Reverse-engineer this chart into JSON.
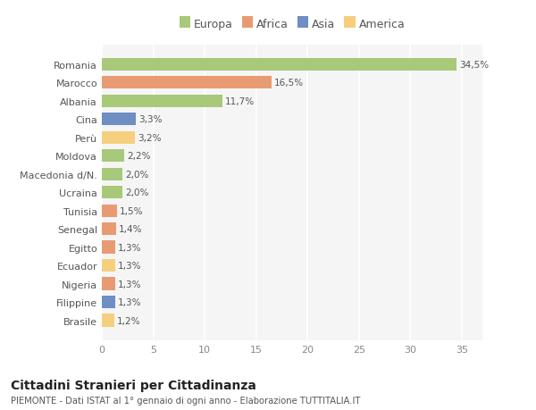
{
  "countries": [
    "Brasile",
    "Filippine",
    "Nigeria",
    "Ecuador",
    "Egitto",
    "Senegal",
    "Tunisia",
    "Ucraina",
    "Macedonia d/N.",
    "Moldova",
    "Perù",
    "Cina",
    "Albania",
    "Marocco",
    "Romania"
  ],
  "values": [
    1.2,
    1.3,
    1.3,
    1.3,
    1.3,
    1.4,
    1.5,
    2.0,
    2.0,
    2.2,
    3.2,
    3.3,
    11.7,
    16.5,
    34.5
  ],
  "labels": [
    "1,2%",
    "1,3%",
    "1,3%",
    "1,3%",
    "1,3%",
    "1,4%",
    "1,5%",
    "2,0%",
    "2,0%",
    "2,2%",
    "3,2%",
    "3,3%",
    "11,7%",
    "16,5%",
    "34,5%"
  ],
  "colors": [
    "#f5cf7e",
    "#6e8ec4",
    "#e89b72",
    "#f5cf7e",
    "#e89b72",
    "#e89b72",
    "#e89b72",
    "#a8c87a",
    "#a8c87a",
    "#a8c87a",
    "#f5cf7e",
    "#6e8ec4",
    "#a8c87a",
    "#e89b72",
    "#a8c87a"
  ],
  "legend": {
    "Europa": "#a8c87a",
    "Africa": "#e89b72",
    "Asia": "#6e8ec4",
    "America": "#f5cf7e"
  },
  "title": "Cittadini Stranieri per Cittadinanza",
  "subtitle": "PIEMONTE - Dati ISTAT al 1° gennaio di ogni anno - Elaborazione TUTTITALIA.IT",
  "xlim": [
    0,
    37
  ],
  "xticks": [
    0,
    5,
    10,
    15,
    20,
    25,
    30,
    35
  ],
  "background_color": "#ffffff",
  "plot_background": "#f5f5f5",
  "grid_color": "#ffffff",
  "bar_height": 0.7
}
